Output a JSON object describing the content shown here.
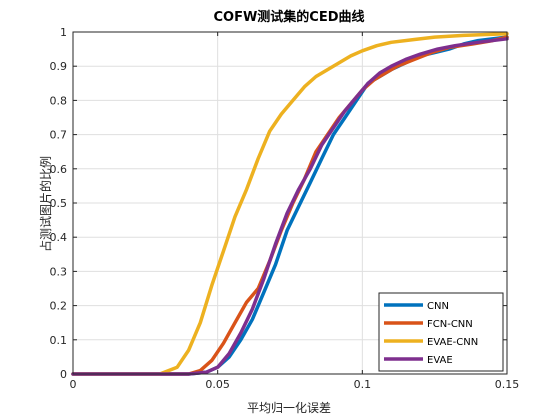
{
  "chart_data": {
    "type": "line",
    "title": "COFW测试集的CED曲线",
    "xlabel": "平均归一化误差",
    "ylabel": "占测试图片的比例",
    "xlim": [
      0,
      0.15
    ],
    "ylim": [
      0,
      1
    ],
    "xticks": [
      0,
      0.05,
      0.1,
      0.15
    ],
    "xtick_labels": [
      "0",
      "0.05",
      "0.1",
      "0.15"
    ],
    "yticks": [
      0,
      0.1,
      0.2,
      0.3,
      0.4,
      0.5,
      0.6,
      0.7,
      0.8,
      0.9,
      1
    ],
    "ytick_labels": [
      "0",
      "0.1",
      "0.2",
      "0.3",
      "0.4",
      "0.5",
      "0.6",
      "0.7",
      "0.8",
      "0.9",
      "1"
    ],
    "grid": true,
    "legend_position": "bottom-right",
    "series": [
      {
        "name": "CNN",
        "color": "#0072BD",
        "points": [
          [
            0,
            0
          ],
          [
            0.04,
            0
          ],
          [
            0.046,
            0.005
          ],
          [
            0.05,
            0.02
          ],
          [
            0.054,
            0.05
          ],
          [
            0.058,
            0.1
          ],
          [
            0.062,
            0.16
          ],
          [
            0.066,
            0.24
          ],
          [
            0.07,
            0.32
          ],
          [
            0.074,
            0.42
          ],
          [
            0.078,
            0.49
          ],
          [
            0.082,
            0.56
          ],
          [
            0.086,
            0.63
          ],
          [
            0.09,
            0.7
          ],
          [
            0.094,
            0.75
          ],
          [
            0.098,
            0.8
          ],
          [
            0.102,
            0.85
          ],
          [
            0.106,
            0.87
          ],
          [
            0.11,
            0.89
          ],
          [
            0.115,
            0.91
          ],
          [
            0.12,
            0.93
          ],
          [
            0.125,
            0.94
          ],
          [
            0.13,
            0.95
          ],
          [
            0.135,
            0.965
          ],
          [
            0.14,
            0.975
          ],
          [
            0.145,
            0.98
          ],
          [
            0.15,
            0.985
          ]
        ]
      },
      {
        "name": "FCN-CNN",
        "color": "#D95319",
        "points": [
          [
            0,
            0
          ],
          [
            0.04,
            0
          ],
          [
            0.044,
            0.01
          ],
          [
            0.048,
            0.04
          ],
          [
            0.052,
            0.09
          ],
          [
            0.056,
            0.15
          ],
          [
            0.06,
            0.21
          ],
          [
            0.064,
            0.25
          ],
          [
            0.068,
            0.33
          ],
          [
            0.072,
            0.42
          ],
          [
            0.076,
            0.5
          ],
          [
            0.08,
            0.57
          ],
          [
            0.084,
            0.65
          ],
          [
            0.088,
            0.7
          ],
          [
            0.092,
            0.75
          ],
          [
            0.096,
            0.79
          ],
          [
            0.1,
            0.83
          ],
          [
            0.104,
            0.86
          ],
          [
            0.108,
            0.88
          ],
          [
            0.112,
            0.9
          ],
          [
            0.118,
            0.92
          ],
          [
            0.124,
            0.94
          ],
          [
            0.13,
            0.955
          ],
          [
            0.138,
            0.965
          ],
          [
            0.145,
            0.975
          ],
          [
            0.15,
            0.985
          ]
        ]
      },
      {
        "name": "EVAE-CNN",
        "color": "#EDB120",
        "points": [
          [
            0,
            0
          ],
          [
            0.03,
            0
          ],
          [
            0.036,
            0.02
          ],
          [
            0.04,
            0.07
          ],
          [
            0.044,
            0.15
          ],
          [
            0.048,
            0.26
          ],
          [
            0.052,
            0.36
          ],
          [
            0.056,
            0.46
          ],
          [
            0.06,
            0.54
          ],
          [
            0.064,
            0.63
          ],
          [
            0.068,
            0.71
          ],
          [
            0.072,
            0.76
          ],
          [
            0.076,
            0.8
          ],
          [
            0.08,
            0.84
          ],
          [
            0.084,
            0.87
          ],
          [
            0.088,
            0.89
          ],
          [
            0.092,
            0.91
          ],
          [
            0.096,
            0.93
          ],
          [
            0.1,
            0.945
          ],
          [
            0.105,
            0.96
          ],
          [
            0.11,
            0.97
          ],
          [
            0.118,
            0.978
          ],
          [
            0.125,
            0.985
          ],
          [
            0.135,
            0.99
          ],
          [
            0.15,
            0.995
          ]
        ]
      },
      {
        "name": "EVAE",
        "color": "#7E2F8E",
        "points": [
          [
            0,
            0
          ],
          [
            0.04,
            0
          ],
          [
            0.046,
            0.005
          ],
          [
            0.05,
            0.02
          ],
          [
            0.054,
            0.06
          ],
          [
            0.058,
            0.12
          ],
          [
            0.062,
            0.19
          ],
          [
            0.066,
            0.28
          ],
          [
            0.07,
            0.38
          ],
          [
            0.074,
            0.47
          ],
          [
            0.078,
            0.54
          ],
          [
            0.082,
            0.6
          ],
          [
            0.086,
            0.67
          ],
          [
            0.09,
            0.72
          ],
          [
            0.094,
            0.77
          ],
          [
            0.098,
            0.81
          ],
          [
            0.102,
            0.85
          ],
          [
            0.106,
            0.88
          ],
          [
            0.11,
            0.9
          ],
          [
            0.115,
            0.92
          ],
          [
            0.12,
            0.935
          ],
          [
            0.126,
            0.95
          ],
          [
            0.132,
            0.96
          ],
          [
            0.14,
            0.97
          ],
          [
            0.15,
            0.98
          ]
        ]
      }
    ]
  }
}
